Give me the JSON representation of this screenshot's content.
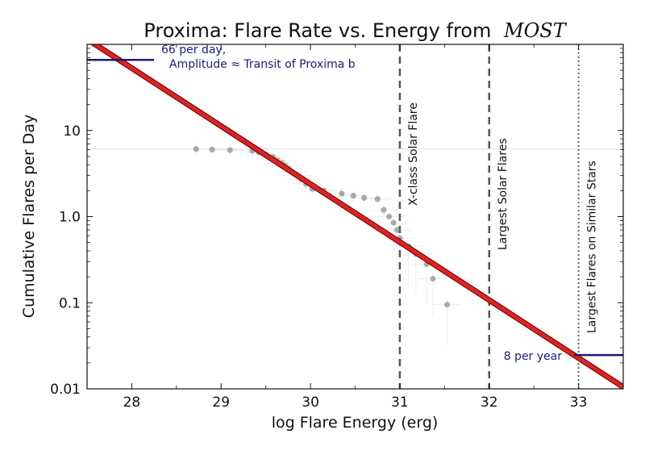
{
  "chart_data": {
    "type": "scatter",
    "title": "Proxima: Flare Rate vs. Energy from",
    "title_italic": "MOST",
    "xlabel": "log Flare Energy (erg)",
    "ylabel": "Cumulative Flares per Day",
    "xlim": [
      27.5,
      33.5
    ],
    "ylim": [
      0.01,
      100
    ],
    "y_scale": "log",
    "grid": false,
    "x_ticks": [
      {
        "value": 28,
        "label": "28"
      },
      {
        "value": 29,
        "label": "29"
      },
      {
        "value": 30,
        "label": "30"
      },
      {
        "value": 31,
        "label": "31"
      },
      {
        "value": 32,
        "label": "32"
      },
      {
        "value": 33,
        "label": "33"
      }
    ],
    "y_ticks": [
      {
        "value": 0.01,
        "label": "0.01"
      },
      {
        "value": 0.1,
        "label": "0.1"
      },
      {
        "value": 1,
        "label": "1.0"
      },
      {
        "value": 10,
        "label": "10"
      }
    ],
    "colors": {
      "fit": "#d62728",
      "fit_edge": "#8b0000",
      "points": "#777777",
      "annotation": "#1a1a7a",
      "reference": "#555555"
    },
    "fit_line": {
      "x": [
        27.5,
        33.5
      ],
      "y": [
        115,
        0.0105
      ]
    },
    "background_band_y": 6.1,
    "points": [
      {
        "x": 28.72,
        "y": 6.1
      },
      {
        "x": 28.9,
        "y": 6.0
      },
      {
        "x": 29.1,
        "y": 5.9
      },
      {
        "x": 29.35,
        "y": 5.8
      },
      {
        "x": 29.42,
        "y": 5.6
      },
      {
        "x": 29.5,
        "y": 5.2
      },
      {
        "x": 29.58,
        "y": 4.9
      },
      {
        "x": 29.63,
        "y": 4.5
      },
      {
        "x": 29.68,
        "y": 4.2
      },
      {
        "x": 29.72,
        "y": 3.9
      },
      {
        "x": 29.76,
        "y": 3.6
      },
      {
        "x": 29.8,
        "y": 3.3
      },
      {
        "x": 29.85,
        "y": 3.0
      },
      {
        "x": 29.9,
        "y": 2.7
      },
      {
        "x": 29.95,
        "y": 2.4
      },
      {
        "x": 30.02,
        "y": 2.1
      },
      {
        "x": 30.15,
        "y": 2.0
      },
      {
        "x": 30.35,
        "y": 1.85
      },
      {
        "x": 30.48,
        "y": 1.75
      },
      {
        "x": 30.6,
        "y": 1.65
      },
      {
        "x": 30.75,
        "y": 1.6
      },
      {
        "x": 30.82,
        "y": 1.2
      },
      {
        "x": 30.88,
        "y": 1.0
      },
      {
        "x": 30.93,
        "y": 0.85
      },
      {
        "x": 30.97,
        "y": 0.7
      },
      {
        "x": 31.0,
        "y": 0.56
      },
      {
        "x": 31.1,
        "y": 0.45
      },
      {
        "x": 31.18,
        "y": 0.37
      },
      {
        "x": 31.3,
        "y": 0.28
      },
      {
        "x": 31.37,
        "y": 0.19
      },
      {
        "x": 31.53,
        "y": 0.095
      }
    ],
    "reference_lines": [
      {
        "x": 31,
        "label": "X-class Solar Flare",
        "style": "dashed"
      },
      {
        "x": 32,
        "label": "Largest Solar Flares",
        "style": "dashed"
      },
      {
        "x": 33,
        "label": "Largest Flares on Similar Stars",
        "style": "dotted"
      }
    ],
    "annotations": {
      "high_rate": {
        "y": 66,
        "x_end": 28.25,
        "line1": "66 per day,",
        "line2": "Amplitude ≈ Transit of Proxima b"
      },
      "low_rate": {
        "y": 0.0247,
        "x_start": 32.95,
        "text": "8 per year"
      }
    }
  }
}
